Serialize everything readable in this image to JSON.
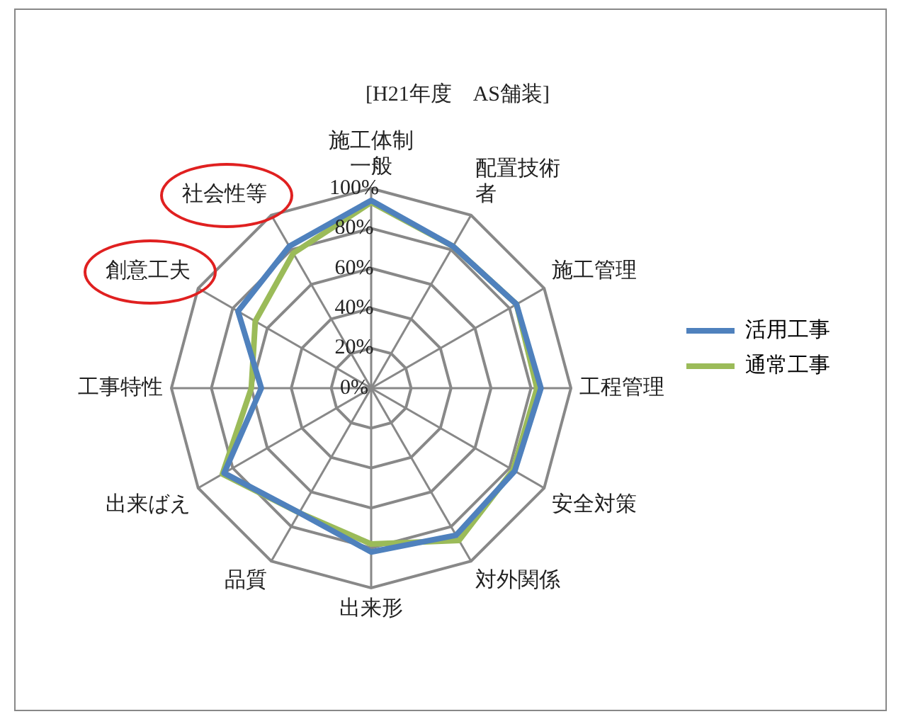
{
  "chart_data": {
    "type": "radar",
    "title": "[H21年度　AS舗装]",
    "categories": [
      "施工体制一般",
      "配置技術者",
      "施工管理",
      "工程管理",
      "安全対策",
      "対外関係",
      "出来形",
      "品質",
      "出来ばえ",
      "工事特性",
      "創意工夫",
      "社会性等"
    ],
    "series": [
      {
        "name": "活用工事",
        "color": "#4f81bd",
        "values": [
          94,
          82,
          84,
          85,
          83,
          85,
          82,
          72,
          85,
          55,
          77,
          82
        ]
      },
      {
        "name": "通常工事",
        "color": "#9bbb59",
        "values": [
          93,
          82,
          84,
          83,
          82,
          88,
          78,
          72,
          86,
          60,
          67,
          78
        ]
      }
    ],
    "ylim": [
      0,
      100
    ],
    "yticks": [
      {
        "value": 0,
        "label": "0%"
      },
      {
        "value": 20,
        "label": "20%"
      },
      {
        "value": 40,
        "label": "40%"
      },
      {
        "value": 60,
        "label": "60%"
      },
      {
        "value": 80,
        "label": "80%"
      },
      {
        "value": 100,
        "label": "100%"
      }
    ],
    "grid": true,
    "legend": "right",
    "marker": "none"
  }
}
